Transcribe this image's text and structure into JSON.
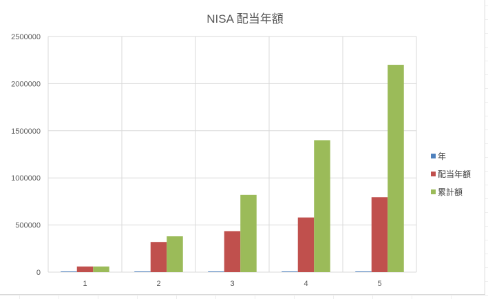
{
  "chart_data": {
    "type": "bar",
    "title": "NISA 配当年額",
    "categories": [
      "1",
      "2",
      "3",
      "4",
      "5"
    ],
    "series": [
      {
        "name": "年",
        "color": "#4f81bd",
        "values": [
          1,
          2,
          3,
          4,
          5
        ]
      },
      {
        "name": "配当年額",
        "color": "#c0504d",
        "values": [
          60000,
          320000,
          435000,
          580000,
          795000
        ]
      },
      {
        "name": "累計額",
        "color": "#9bbb59",
        "values": [
          60000,
          380000,
          820000,
          1400000,
          2200000
        ]
      }
    ],
    "ylim": [
      0,
      2500000
    ],
    "yticks": [
      "0",
      "500000",
      "1000000",
      "1500000",
      "2000000",
      "2500000"
    ],
    "grid": true,
    "legend_position": "right"
  }
}
